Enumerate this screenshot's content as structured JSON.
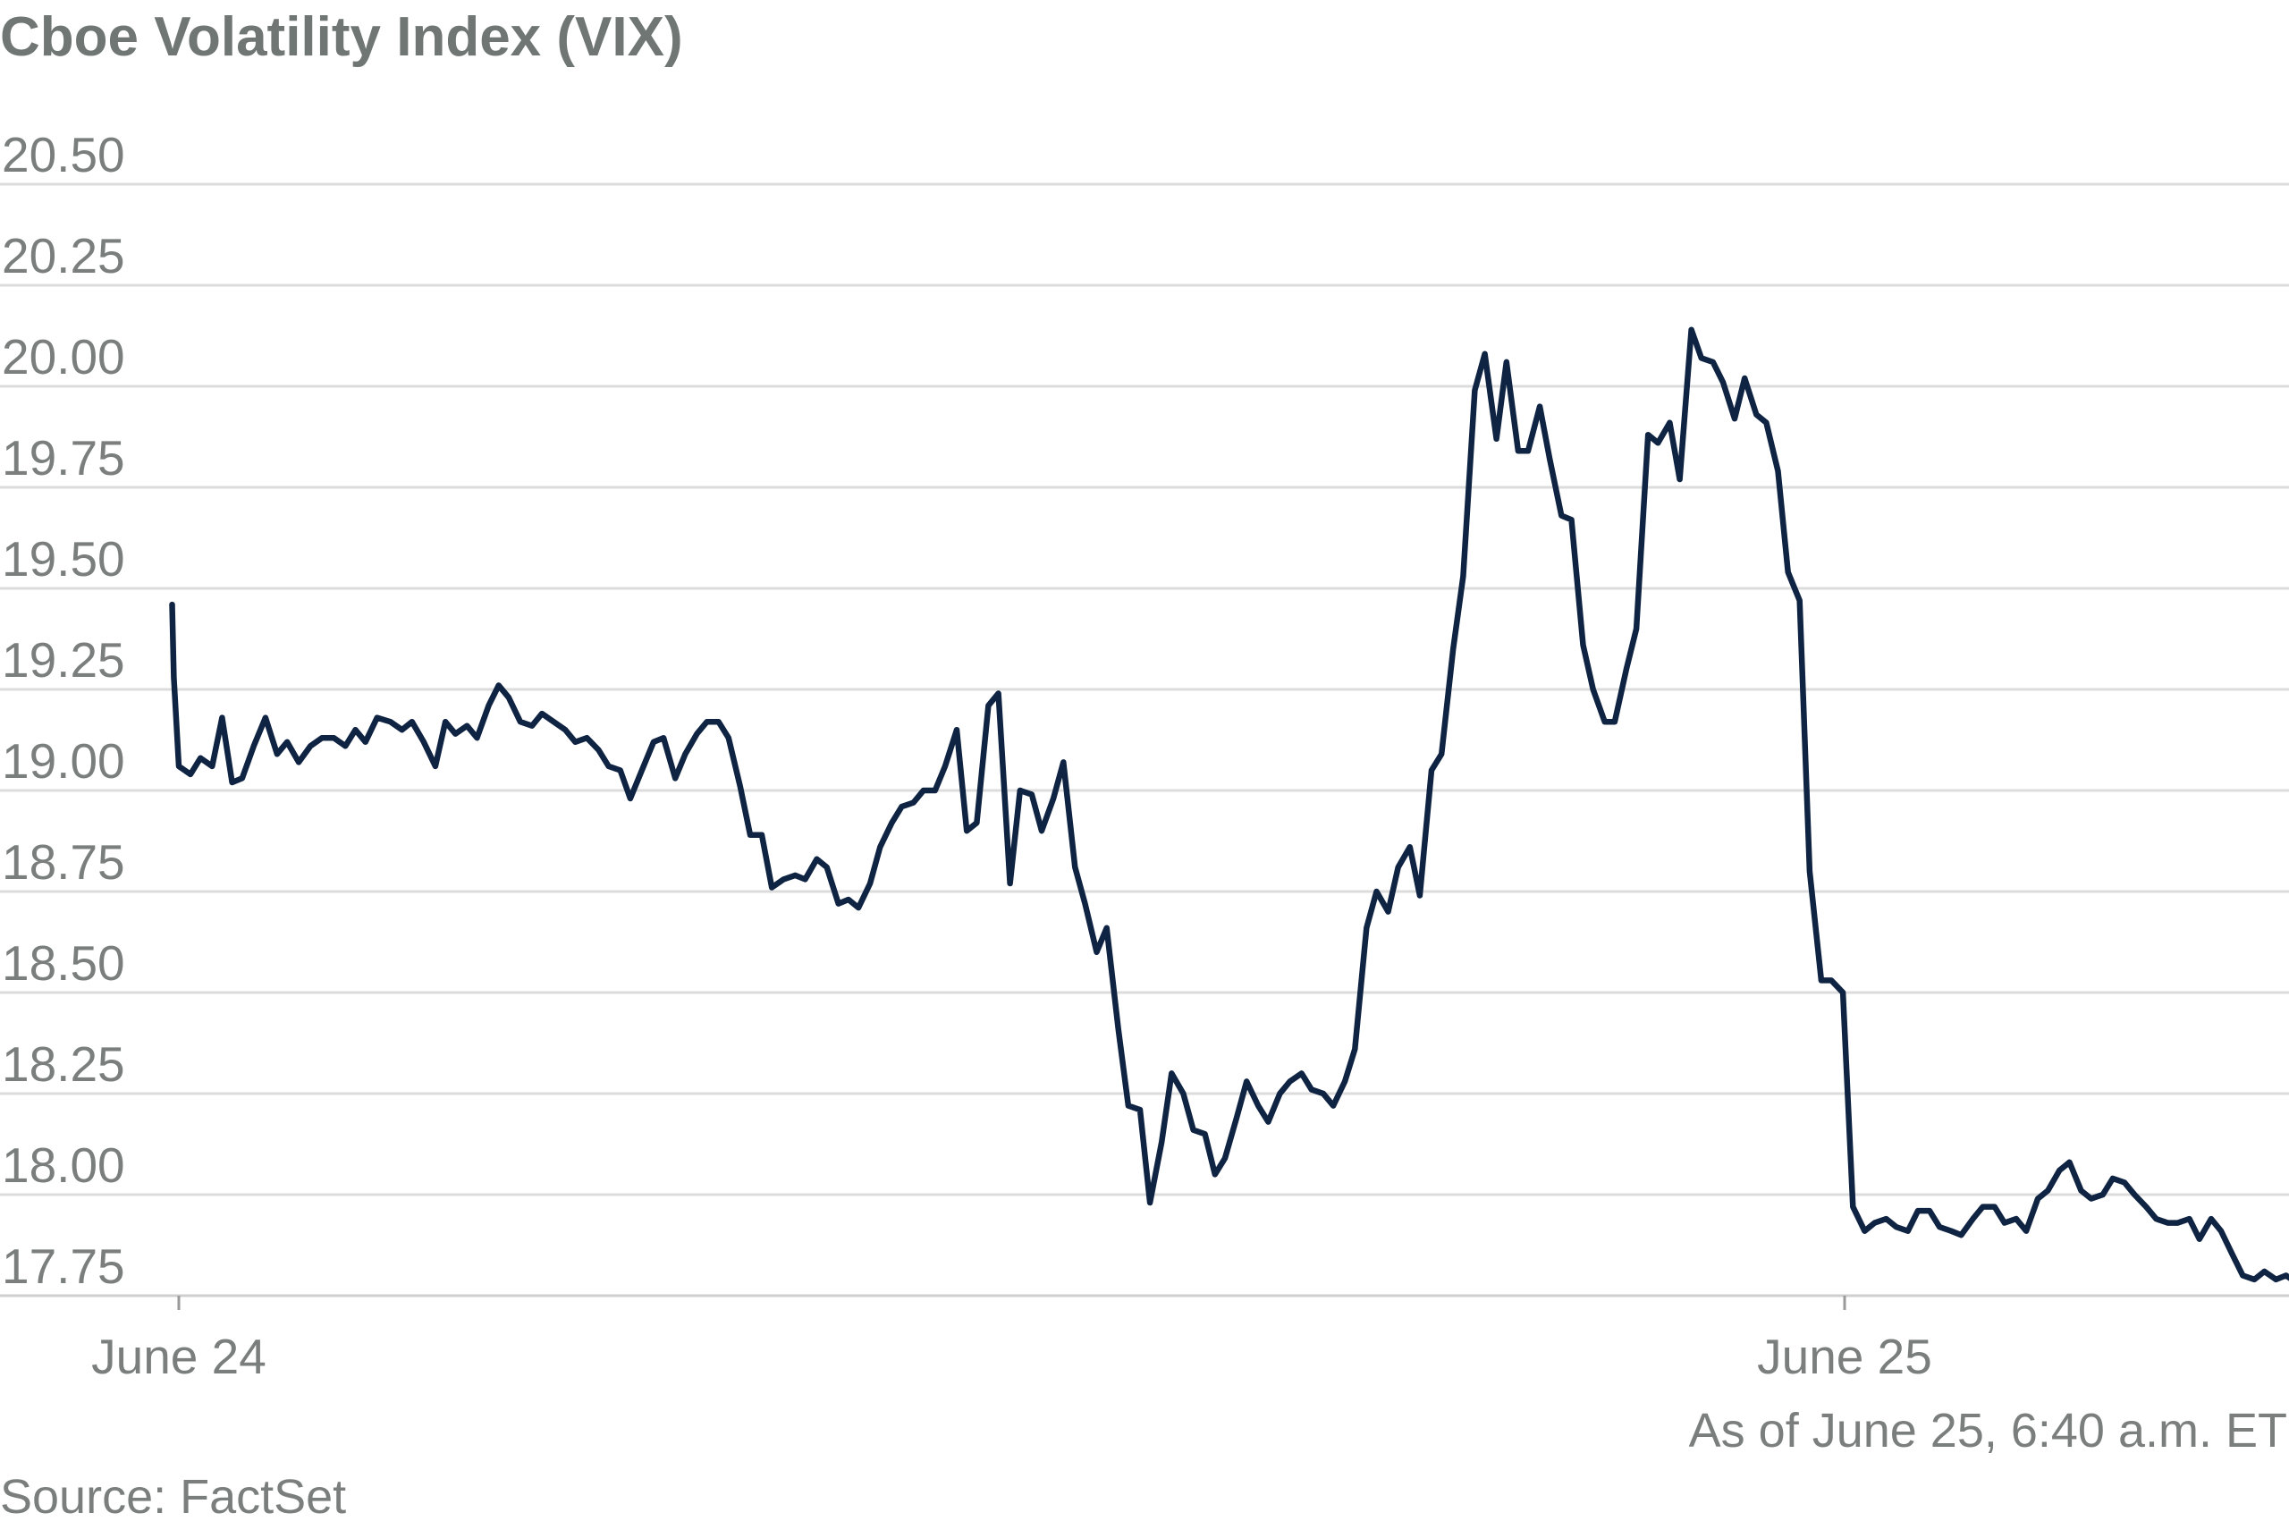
{
  "chart_data": {
    "type": "line",
    "title": "Cboe Volatility Index (VIX)",
    "xlabel": "",
    "ylabel": "",
    "ylim": [
      17.75,
      20.5
    ],
    "yticks": [
      20.5,
      20.25,
      20.0,
      19.75,
      19.5,
      19.25,
      19.0,
      18.75,
      18.5,
      18.25,
      18.0,
      17.75
    ],
    "ytick_labels": [
      "20.50",
      "20.25",
      "20.00",
      "19.75",
      "19.50",
      "19.25",
      "19.00",
      "18.75",
      "18.50",
      "18.25",
      "18.00",
      "17.75"
    ],
    "xlim": [
      0,
      1.285
    ],
    "xticks": [
      {
        "label": "June 24",
        "x": 0.0
      },
      {
        "label": "June 25",
        "x": 1.0
      }
    ],
    "grid": true,
    "legend": "none",
    "note": "As of June 25, 6:40 a.m. ET",
    "source": "Source: FactSet",
    "series": [
      {
        "name": "",
        "color": "#0f2342",
        "x_unit": "days since June 24",
        "points": [
          [
            -0.004,
            19.46
          ],
          [
            -0.003,
            19.28
          ],
          [
            0.0,
            19.06
          ],
          [
            0.007,
            19.04
          ],
          [
            0.013,
            19.08
          ],
          [
            0.02,
            19.06
          ],
          [
            0.026,
            19.18
          ],
          [
            0.032,
            19.02
          ],
          [
            0.038,
            19.03
          ],
          [
            0.045,
            19.11
          ],
          [
            0.052,
            19.18
          ],
          [
            0.059,
            19.09
          ],
          [
            0.065,
            19.12
          ],
          [
            0.072,
            19.07
          ],
          [
            0.079,
            19.11
          ],
          [
            0.086,
            19.13
          ],
          [
            0.093,
            19.13
          ],
          [
            0.1,
            19.11
          ],
          [
            0.106,
            19.15
          ],
          [
            0.112,
            19.12
          ],
          [
            0.119,
            19.18
          ],
          [
            0.127,
            19.17
          ],
          [
            0.134,
            19.15
          ],
          [
            0.14,
            19.17
          ],
          [
            0.147,
            19.12
          ],
          [
            0.154,
            19.06
          ],
          [
            0.16,
            19.17
          ],
          [
            0.166,
            19.14
          ],
          [
            0.173,
            19.16
          ],
          [
            0.179,
            19.13
          ],
          [
            0.186,
            19.21
          ],
          [
            0.192,
            19.26
          ],
          [
            0.198,
            19.23
          ],
          [
            0.205,
            19.17
          ],
          [
            0.212,
            19.16
          ],
          [
            0.218,
            19.19
          ],
          [
            0.225,
            19.17
          ],
          [
            0.232,
            19.15
          ],
          [
            0.238,
            19.12
          ],
          [
            0.245,
            19.13
          ],
          [
            0.252,
            19.1
          ],
          [
            0.258,
            19.06
          ],
          [
            0.265,
            19.05
          ],
          [
            0.271,
            18.98
          ],
          [
            0.278,
            19.05
          ],
          [
            0.285,
            19.12
          ],
          [
            0.291,
            19.13
          ],
          [
            0.298,
            19.03
          ],
          [
            0.304,
            19.09
          ],
          [
            0.311,
            19.14
          ],
          [
            0.317,
            19.17
          ],
          [
            0.324,
            19.17
          ],
          [
            0.33,
            19.13
          ],
          [
            0.337,
            19.01
          ],
          [
            0.343,
            18.89
          ],
          [
            0.35,
            18.89
          ],
          [
            0.356,
            18.76
          ],
          [
            0.363,
            18.78
          ],
          [
            0.37,
            18.79
          ],
          [
            0.376,
            18.78
          ],
          [
            0.383,
            18.83
          ],
          [
            0.389,
            18.81
          ],
          [
            0.396,
            18.72
          ],
          [
            0.402,
            18.73
          ],
          [
            0.408,
            18.71
          ],
          [
            0.415,
            18.77
          ],
          [
            0.421,
            18.86
          ],
          [
            0.428,
            18.92
          ],
          [
            0.434,
            18.96
          ],
          [
            0.441,
            18.97
          ],
          [
            0.447,
            19.0
          ],
          [
            0.454,
            19.0
          ],
          [
            0.46,
            19.06
          ],
          [
            0.467,
            19.15
          ],
          [
            0.473,
            18.9
          ],
          [
            0.479,
            18.92
          ],
          [
            0.486,
            19.21
          ],
          [
            0.492,
            19.24
          ],
          [
            0.499,
            18.77
          ],
          [
            0.505,
            19.0
          ],
          [
            0.512,
            18.99
          ],
          [
            0.518,
            18.9
          ],
          [
            0.525,
            18.98
          ],
          [
            0.531,
            19.07
          ],
          [
            0.538,
            18.81
          ],
          [
            0.544,
            18.72
          ],
          [
            0.551,
            18.6
          ],
          [
            0.557,
            18.66
          ],
          [
            0.564,
            18.41
          ],
          [
            0.57,
            18.22
          ],
          [
            0.577,
            18.21
          ],
          [
            0.583,
            17.98
          ],
          [
            0.59,
            18.13
          ],
          [
            0.596,
            18.3
          ],
          [
            0.603,
            18.25
          ],
          [
            0.609,
            18.16
          ],
          [
            0.616,
            18.15
          ],
          [
            0.622,
            18.05
          ],
          [
            0.628,
            18.09
          ],
          [
            0.635,
            18.19
          ],
          [
            0.641,
            18.28
          ],
          [
            0.648,
            18.22
          ],
          [
            0.654,
            18.18
          ],
          [
            0.661,
            18.25
          ],
          [
            0.667,
            18.28
          ],
          [
            0.674,
            18.3
          ],
          [
            0.68,
            18.26
          ],
          [
            0.687,
            18.25
          ],
          [
            0.693,
            18.22
          ],
          [
            0.7,
            18.28
          ],
          [
            0.706,
            18.36
          ],
          [
            0.713,
            18.66
          ],
          [
            0.719,
            18.75
          ],
          [
            0.726,
            18.7
          ],
          [
            0.732,
            18.81
          ],
          [
            0.739,
            18.86
          ],
          [
            0.745,
            18.74
          ],
          [
            0.752,
            19.05
          ],
          [
            0.758,
            19.09
          ],
          [
            0.765,
            19.35
          ],
          [
            0.771,
            19.53
          ],
          [
            0.778,
            19.99
          ],
          [
            0.784,
            20.08
          ],
          [
            0.791,
            19.87
          ],
          [
            0.797,
            20.06
          ],
          [
            0.804,
            19.84
          ],
          [
            0.81,
            19.84
          ],
          [
            0.817,
            19.95
          ],
          [
            0.823,
            19.82
          ],
          [
            0.83,
            19.68
          ],
          [
            0.836,
            19.67
          ],
          [
            0.843,
            19.36
          ],
          [
            0.849,
            19.25
          ],
          [
            0.856,
            19.17
          ],
          [
            0.862,
            19.17
          ],
          [
            0.869,
            19.3
          ],
          [
            0.875,
            19.4
          ],
          [
            0.882,
            19.88
          ],
          [
            0.888,
            19.86
          ],
          [
            0.895,
            19.91
          ],
          [
            0.901,
            19.77
          ],
          [
            0.908,
            20.14
          ],
          [
            0.914,
            20.07
          ],
          [
            0.921,
            20.06
          ],
          [
            0.927,
            20.01
          ],
          [
            0.934,
            19.92
          ],
          [
            0.94,
            20.02
          ],
          [
            0.947,
            19.93
          ],
          [
            0.953,
            19.91
          ],
          [
            0.96,
            19.79
          ],
          [
            0.966,
            19.54
          ],
          [
            0.973,
            19.47
          ],
          [
            0.979,
            18.8
          ],
          [
            0.986,
            18.53
          ],
          [
            0.992,
            18.53
          ],
          [
            0.999,
            18.5
          ],
          [
            1.005,
            17.97
          ],
          [
            1.012,
            17.91
          ],
          [
            1.018,
            17.93
          ],
          [
            1.025,
            17.94
          ],
          [
            1.031,
            17.92
          ],
          [
            1.038,
            17.91
          ],
          [
            1.044,
            17.96
          ],
          [
            1.051,
            17.96
          ],
          [
            1.057,
            17.92
          ],
          [
            1.064,
            17.91
          ],
          [
            1.07,
            17.9
          ],
          [
            1.077,
            17.94
          ],
          [
            1.083,
            17.97
          ],
          [
            1.09,
            17.97
          ],
          [
            1.096,
            17.93
          ],
          [
            1.103,
            17.94
          ],
          [
            1.109,
            17.91
          ],
          [
            1.116,
            17.99
          ],
          [
            1.122,
            18.01
          ],
          [
            1.129,
            18.06
          ],
          [
            1.135,
            18.08
          ],
          [
            1.142,
            18.01
          ],
          [
            1.148,
            17.99
          ],
          [
            1.155,
            18.0
          ],
          [
            1.161,
            18.04
          ],
          [
            1.168,
            18.03
          ],
          [
            1.174,
            18.0
          ],
          [
            1.181,
            17.97
          ],
          [
            1.187,
            17.94
          ],
          [
            1.194,
            17.93
          ],
          [
            1.2,
            17.93
          ],
          [
            1.207,
            17.94
          ],
          [
            1.213,
            17.89
          ],
          [
            1.22,
            17.94
          ],
          [
            1.226,
            17.91
          ],
          [
            1.233,
            17.85
          ],
          [
            1.239,
            17.8
          ],
          [
            1.246,
            17.79
          ],
          [
            1.252,
            17.81
          ],
          [
            1.259,
            17.79
          ],
          [
            1.265,
            17.8
          ],
          [
            1.272,
            17.78
          ],
          [
            1.278,
            17.82
          ],
          [
            1.285,
            17.85
          ]
        ]
      }
    ]
  }
}
